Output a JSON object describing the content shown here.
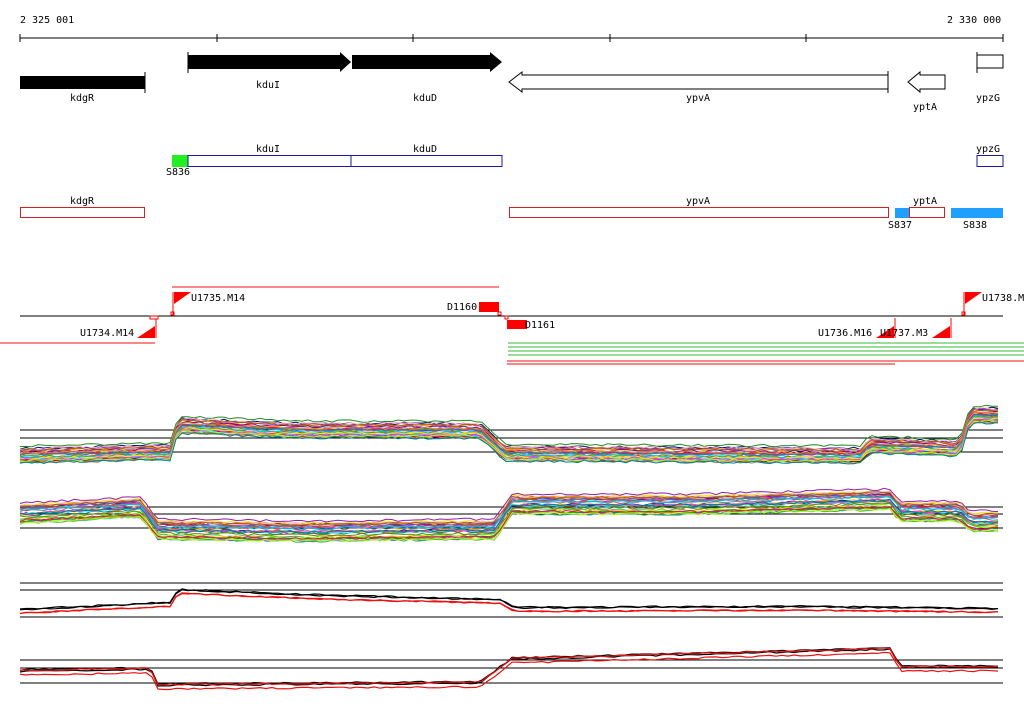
{
  "coordinates": {
    "start_label": "2 325 001",
    "end_label": "2 330 000"
  },
  "colors": {
    "gene_fill": "#000000",
    "gene_outline": "#000000",
    "operon_blue": "#1a1aa6",
    "transcript_red": "#d42020",
    "segment_green": "#22ee22",
    "segment_cyan": "#1fa0ff",
    "marker_red": "#ff0000",
    "line_black": "#000000",
    "line_red": "#ee1111",
    "line_green": "#33bb33"
  },
  "genes": [
    {
      "name": "kdgR",
      "strand": "plus",
      "style": "filled-bar"
    },
    {
      "name": "kduI",
      "strand": "plus",
      "style": "filled-arrow"
    },
    {
      "name": "kduD",
      "strand": "plus",
      "style": "filled-arrow"
    },
    {
      "name": "ypvA",
      "strand": "minus",
      "style": "open-arrow"
    },
    {
      "name": "yptA",
      "strand": "minus",
      "style": "open-arrow"
    },
    {
      "name": "ypzG",
      "strand": "plus",
      "style": "open-bar"
    }
  ],
  "operon_track": {
    "boxes": [
      "kduI",
      "kduD",
      "ypzG"
    ],
    "segments": [
      "S836"
    ]
  },
  "transcript_track": {
    "boxes": [
      "kdgR",
      "ypvA",
      "yptA"
    ],
    "segments": [
      "S837",
      "S838"
    ]
  },
  "tiling_track": {
    "upshifts": [
      "U1735.M14",
      "U1734.M14",
      "U1736.M16",
      "U1737.M3",
      "U1738.M"
    ],
    "downshifts": [
      "D1160",
      "D1161"
    ]
  },
  "expression_panels": [
    {
      "id": "multi-condition-top",
      "style": "multicolor"
    },
    {
      "id": "multi-condition-bottom",
      "style": "multicolor"
    },
    {
      "id": "summary-top",
      "style": "black-red"
    },
    {
      "id": "summary-bottom",
      "style": "black-red"
    }
  ]
}
